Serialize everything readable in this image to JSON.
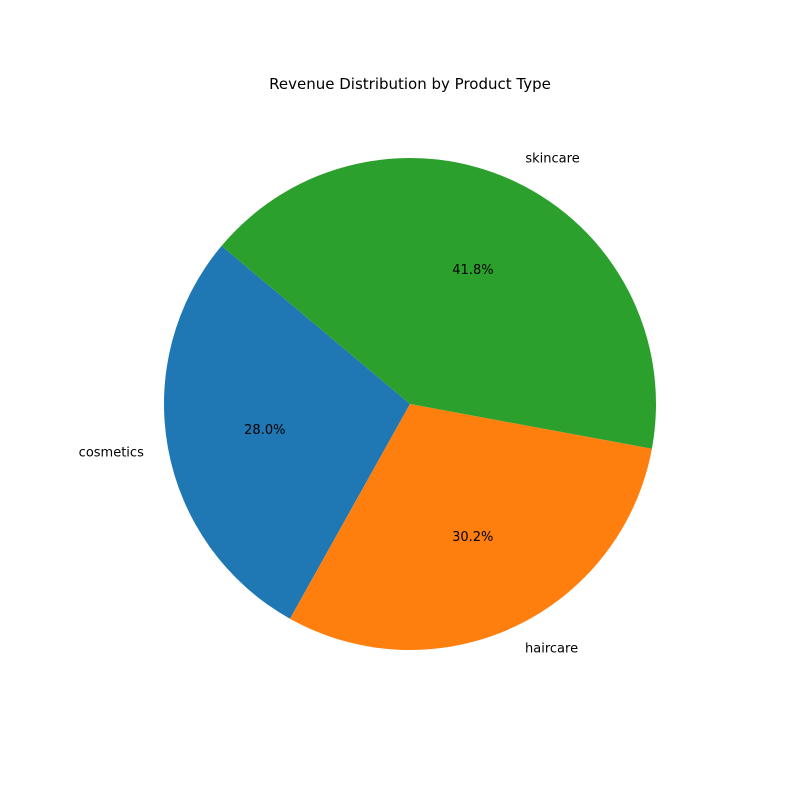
{
  "chart_data": {
    "type": "pie",
    "title": "Revenue Distribution by Product Type",
    "categories": [
      "cosmetics",
      "haircare",
      "skincare"
    ],
    "values": [
      28.0,
      30.2,
      41.8
    ],
    "percent_labels": [
      "28.0%",
      "30.2%",
      "41.8%"
    ],
    "colors": [
      "#1f77b4",
      "#ff7f0e",
      "#2ca02c"
    ],
    "start_angle_deg": 140,
    "direction": "counterclockwise",
    "legend": "none"
  }
}
